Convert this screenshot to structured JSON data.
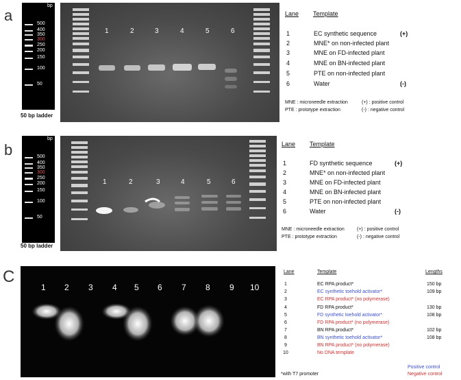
{
  "panels": {
    "a": {
      "letter": "a",
      "ladder_unit": "bp",
      "ladder_caption": "50 bp ladder",
      "ladder_labels": [
        "500",
        "400",
        "350",
        "300",
        "250",
        "200",
        "150",
        "100",
        "50"
      ],
      "lane_numbers": [
        "1",
        "2",
        "3",
        "4",
        "5",
        "6"
      ],
      "header_lane": "Lane",
      "header_template": "Template",
      "rows": [
        {
          "num": "1",
          "text": "EC synthetic sequence",
          "tag": "(+)"
        },
        {
          "num": "2",
          "text": "MNE* on non-infected plant",
          "tag": ""
        },
        {
          "num": "3",
          "text": "MNE on FD-infected plant",
          "tag": ""
        },
        {
          "num": "4",
          "text": "MNE on BN-infected plant",
          "tag": ""
        },
        {
          "num": "5",
          "text": "PTE on non-infected plant",
          "tag": ""
        },
        {
          "num": "6",
          "text": "Water",
          "tag": "(-)"
        }
      ],
      "legend": [
        "MNE : microneedle extraction",
        "(+) : positive control",
        "PTE : prototype extraction",
        "(-) : negative control"
      ]
    },
    "b": {
      "letter": "b",
      "ladder_unit": "bp",
      "ladder_caption": "50 bp ladder",
      "ladder_labels": [
        "500",
        "400",
        "350",
        "300",
        "250",
        "200",
        "150",
        "100",
        "50"
      ],
      "lane_numbers": [
        "1",
        "2",
        "3",
        "4",
        "5",
        "6"
      ],
      "header_lane": "Lane",
      "header_template": "Template",
      "rows": [
        {
          "num": "1",
          "text": "FD synthetic sequence",
          "tag": "(+)"
        },
        {
          "num": "2",
          "text": "MNE* on non-infected plant",
          "tag": ""
        },
        {
          "num": "3",
          "text": "MNE on FD-infected plant",
          "tag": ""
        },
        {
          "num": "4",
          "text": "MNE on BN-infected plant",
          "tag": ""
        },
        {
          "num": "5",
          "text": "PTE on non-infected plant",
          "tag": ""
        },
        {
          "num": "6",
          "text": "Water",
          "tag": "(-)"
        }
      ],
      "legend": [
        "MNE : microneedle extraction",
        "(+) : positive control",
        "PTE : prototype extraction",
        "(-) : negative control"
      ]
    },
    "c": {
      "letter": "C",
      "lane_numbers": [
        "1",
        "2",
        "3",
        "4",
        "5",
        "6",
        "7",
        "8",
        "9",
        "10"
      ],
      "header_lane": "Lane",
      "header_template": "Template",
      "header_lengths": "Lengths",
      "rows": [
        {
          "num": "1",
          "text": "EC RPA product*",
          "len": "150 bp",
          "color": "black"
        },
        {
          "num": "2",
          "text": "EC synthetic toehold activator*",
          "len": "109 bp",
          "color": "blue"
        },
        {
          "num": "3",
          "text": "EC RPA product* (no polymerase)",
          "len": "",
          "color": "red"
        },
        {
          "num": "4",
          "text": "FD RPA product*",
          "len": "130 bp",
          "color": "black"
        },
        {
          "num": "5",
          "text": "FD synthetic toehold activator*",
          "len": "108 bp",
          "color": "blue"
        },
        {
          "num": "6",
          "text": "FD RPA product* (no polymerase)",
          "len": "",
          "color": "red"
        },
        {
          "num": "7",
          "text": "BN RPA product*",
          "len": "102 bp",
          "color": "black"
        },
        {
          "num": "8",
          "text": "BN synthetic toehold activator*",
          "len": "108 bp",
          "color": "blue"
        },
        {
          "num": "9",
          "text": "BN RPA product* (no polymerase)",
          "len": "",
          "color": "red"
        },
        {
          "num": "10",
          "text": "No DNA template",
          "len": "",
          "color": "red"
        }
      ],
      "positive_control": "Positive control",
      "negative_control": "Negative control",
      "footnote": "*with T7 promoter"
    }
  },
  "colors": {
    "blue": "#3b4fd0",
    "red": "#d03030"
  }
}
